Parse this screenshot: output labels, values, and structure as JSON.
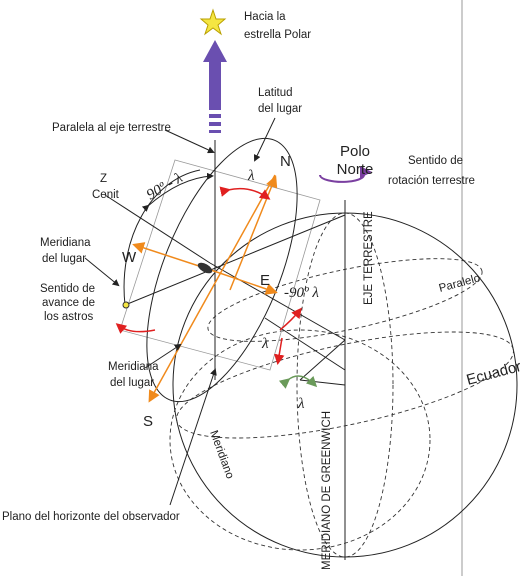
{
  "labels": {
    "polar": [
      "Hacia la",
      "estrella Polar"
    ],
    "latitude": [
      "Latitud",
      "del lugar"
    ],
    "parallel_axis": [
      "Paralela al eje terrestre"
    ],
    "north_pole": [
      "Polo",
      "Norte"
    ],
    "rotation": [
      "Sentido de",
      "rotación terrestre"
    ],
    "north": [
      "N"
    ],
    "zenith": [
      "Z",
      "Cenit"
    ],
    "colatitude": [
      "90º - λ"
    ],
    "lambda_top": [
      "λ"
    ],
    "meridian_left": [
      "Meridiana",
      "del lugar"
    ],
    "west": [
      "W"
    ],
    "east": [
      "E"
    ],
    "colatitude_east": [
      "-90º λ"
    ],
    "earth_axis": [
      "EJE TERRESTRE"
    ],
    "parallel": [
      "Paralelo"
    ],
    "stars": [
      "Sentido de",
      "avance de",
      "los astros"
    ],
    "lambda_mid": [
      "λ"
    ],
    "meridian_low": [
      "Meridiana",
      "del lugar"
    ],
    "equator": [
      "Ecuador"
    ],
    "south": [
      "S"
    ],
    "lambda_green": [
      "λ"
    ],
    "meridian": [
      "Meridiano"
    ],
    "greenwich": [
      "MERIDIANO DE GREENWICH"
    ],
    "horizon": [
      "Plano del horizonte del observador"
    ]
  }
}
